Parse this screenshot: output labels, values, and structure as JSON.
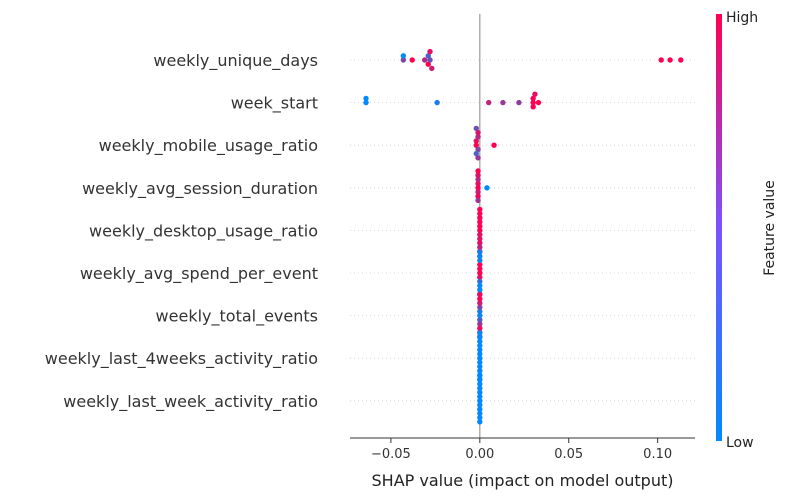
{
  "chart_data": {
    "type": "scatter",
    "subtype": "shap-beeswarm",
    "xlabel": "SHAP value (impact on model output)",
    "xlim": [
      -0.073,
      0.121
    ],
    "xticks": [
      -0.05,
      0.0,
      0.05,
      0.1
    ],
    "xtick_labels": [
      "−0.05",
      "0.00",
      "0.05",
      "0.10"
    ],
    "zero_line": 0,
    "grid": false,
    "colorbar": {
      "label": "Feature value",
      "high_label": "High",
      "low_label": "Low",
      "low_color": "#008afb",
      "high_color": "#ff0052"
    },
    "features": [
      {
        "name": "weekly_unique_days",
        "points": [
          {
            "x": -0.043,
            "v": 0.5
          },
          {
            "x": -0.043,
            "v": 0.0
          },
          {
            "x": -0.038,
            "v": 1.0
          },
          {
            "x": -0.031,
            "v": 0.7
          },
          {
            "x": -0.029,
            "v": 0.3
          },
          {
            "x": -0.029,
            "v": 1.0
          },
          {
            "x": -0.028,
            "v": 0.4
          },
          {
            "x": -0.028,
            "v": 0.9
          },
          {
            "x": -0.027,
            "v": 0.8
          },
          {
            "x": 0.102,
            "v": 1.0
          },
          {
            "x": 0.107,
            "v": 1.0
          },
          {
            "x": 0.113,
            "v": 1.0
          }
        ]
      },
      {
        "name": "week_start",
        "points": [
          {
            "x": -0.064,
            "v": 0.0
          },
          {
            "x": -0.064,
            "v": 0.0
          },
          {
            "x": -0.024,
            "v": 0.1
          },
          {
            "x": 0.005,
            "v": 0.75
          },
          {
            "x": 0.013,
            "v": 0.6
          },
          {
            "x": 0.022,
            "v": 0.55
          },
          {
            "x": 0.03,
            "v": 1.0
          },
          {
            "x": 0.03,
            "v": 1.0
          },
          {
            "x": 0.03,
            "v": 1.0
          },
          {
            "x": 0.031,
            "v": 0.9
          },
          {
            "x": 0.033,
            "v": 1.0
          }
        ]
      },
      {
        "name": "weekly_mobile_usage_ratio",
        "points": [
          {
            "x": -0.002,
            "v": 1.0
          },
          {
            "x": -0.002,
            "v": 0.9
          },
          {
            "x": -0.001,
            "v": 0.5
          },
          {
            "x": -0.001,
            "v": 0.7
          },
          {
            "x": -0.002,
            "v": 0.3
          },
          {
            "x": -0.001,
            "v": 0.85
          },
          {
            "x": -0.001,
            "v": 0.6
          },
          {
            "x": -0.002,
            "v": 0.45
          },
          {
            "x": 0.008,
            "v": 1.0
          }
        ]
      },
      {
        "name": "weekly_avg_session_duration",
        "points": [
          {
            "x": -0.001,
            "v": 1.0
          },
          {
            "x": -0.001,
            "v": 0.9
          },
          {
            "x": -0.001,
            "v": 0.8
          },
          {
            "x": -0.001,
            "v": 0.7
          },
          {
            "x": -0.001,
            "v": 0.95
          },
          {
            "x": -0.001,
            "v": 0.85
          },
          {
            "x": -0.001,
            "v": 0.6
          },
          {
            "x": -0.001,
            "v": 1.0
          },
          {
            "x": 0.004,
            "v": 0.0
          }
        ]
      },
      {
        "name": "weekly_desktop_usage_ratio",
        "points": [
          {
            "x": 0.0,
            "v": 1.0
          },
          {
            "x": 0.0,
            "v": 1.0
          },
          {
            "x": 0.0,
            "v": 0.9
          },
          {
            "x": 0.0,
            "v": 1.0
          },
          {
            "x": 0.0,
            "v": 0.85
          },
          {
            "x": 0.0,
            "v": 1.0
          },
          {
            "x": 0.0,
            "v": 0.9
          },
          {
            "x": 0.0,
            "v": 1.0
          },
          {
            "x": 0.0,
            "v": 0.7
          },
          {
            "x": 0.0,
            "v": 1.0
          },
          {
            "x": 0.0,
            "v": 0.95
          }
        ]
      },
      {
        "name": "weekly_avg_spend_per_event",
        "points": [
          {
            "x": 0.0,
            "v": 1.0
          },
          {
            "x": 0.0,
            "v": 1.0
          },
          {
            "x": 0.0,
            "v": 0.9
          },
          {
            "x": 0.0,
            "v": 1.0
          },
          {
            "x": 0.0,
            "v": 0.2
          },
          {
            "x": 0.0,
            "v": 0.1
          },
          {
            "x": 0.0,
            "v": 0.0
          },
          {
            "x": 0.0,
            "v": 0.05
          },
          {
            "x": 0.0,
            "v": 0.0
          },
          {
            "x": 0.0,
            "v": 0.1
          },
          {
            "x": 0.0,
            "v": 0.0
          }
        ]
      },
      {
        "name": "weekly_total_events",
        "points": [
          {
            "x": 0.0,
            "v": 0.0
          },
          {
            "x": 0.0,
            "v": 0.1
          },
          {
            "x": 0.0,
            "v": 0.3
          },
          {
            "x": 0.0,
            "v": 0.5
          },
          {
            "x": 0.0,
            "v": 0.6
          },
          {
            "x": 0.0,
            "v": 0.8
          },
          {
            "x": 0.0,
            "v": 0.9
          },
          {
            "x": 0.0,
            "v": 1.0
          },
          {
            "x": 0.0,
            "v": 1.0
          },
          {
            "x": 0.0,
            "v": 0.95
          },
          {
            "x": 0.0,
            "v": 1.0
          }
        ]
      },
      {
        "name": "weekly_last_4weeks_activity_ratio",
        "points": [
          {
            "x": 0.0,
            "v": 0.0
          },
          {
            "x": 0.0,
            "v": 0.0
          },
          {
            "x": 0.0,
            "v": 0.0
          },
          {
            "x": 0.0,
            "v": 0.0
          },
          {
            "x": 0.0,
            "v": 0.0
          },
          {
            "x": 0.0,
            "v": 0.0
          },
          {
            "x": 0.0,
            "v": 0.0
          },
          {
            "x": 0.0,
            "v": 0.0
          },
          {
            "x": 0.0,
            "v": 0.0
          },
          {
            "x": 0.0,
            "v": 0.0
          },
          {
            "x": 0.0,
            "v": 0.0
          },
          {
            "x": 0.0,
            "v": 0.0
          }
        ]
      },
      {
        "name": "weekly_last_week_activity_ratio",
        "points": [
          {
            "x": 0.0,
            "v": 0.0
          },
          {
            "x": 0.0,
            "v": 0.0
          },
          {
            "x": 0.0,
            "v": 0.0
          },
          {
            "x": 0.0,
            "v": 0.0
          },
          {
            "x": 0.0,
            "v": 0.0
          },
          {
            "x": 0.0,
            "v": 0.0
          },
          {
            "x": 0.0,
            "v": 0.0
          },
          {
            "x": 0.0,
            "v": 0.0
          },
          {
            "x": 0.0,
            "v": 0.0
          },
          {
            "x": 0.0,
            "v": 0.0
          },
          {
            "x": 0.0,
            "v": 0.0
          },
          {
            "x": 0.0,
            "v": 0.0
          }
        ]
      }
    ]
  }
}
